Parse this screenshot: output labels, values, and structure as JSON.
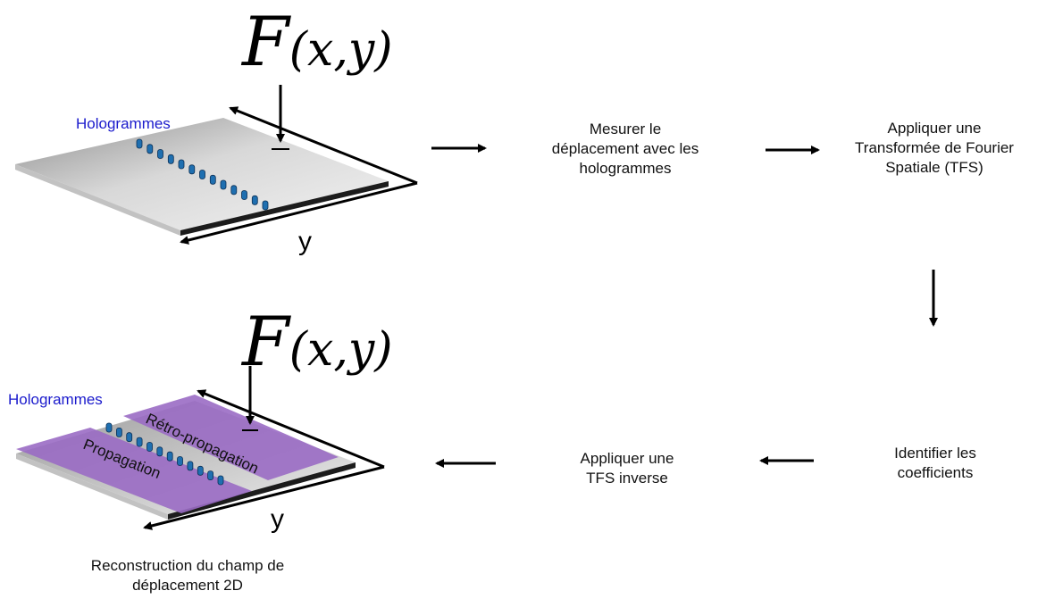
{
  "top_plate": {
    "force_main": "F",
    "force_sub": "(x,y)",
    "holo_label": "Hologrammes",
    "axis_label": "y"
  },
  "bottom_plate": {
    "force_main": "F",
    "force_sub": "(x,y)",
    "holo_label": "Hologrammes",
    "axis_label": "y",
    "region_propagation": "Propagation",
    "region_retro": "Rétro-propagation",
    "caption_line1": "Reconstruction du champ de",
    "caption_line2": "déplacement 2D"
  },
  "steps": {
    "measure": [
      "Mesurer le",
      "déplacement avec les",
      "hologrammes"
    ],
    "tfs": [
      "Appliquer une",
      "Transformée de Fourier",
      "Spatiale (TFS)"
    ],
    "identify": [
      "Identifier les",
      "coefficients"
    ],
    "inverse": [
      "Appliquer une",
      "TFS inverse"
    ]
  },
  "colors": {
    "hologram_label": "#1a1acc",
    "purple_region": "#9a6bc4",
    "plate_gray": "#d4d4d4",
    "sensor_blue": "#1f6fb0"
  }
}
